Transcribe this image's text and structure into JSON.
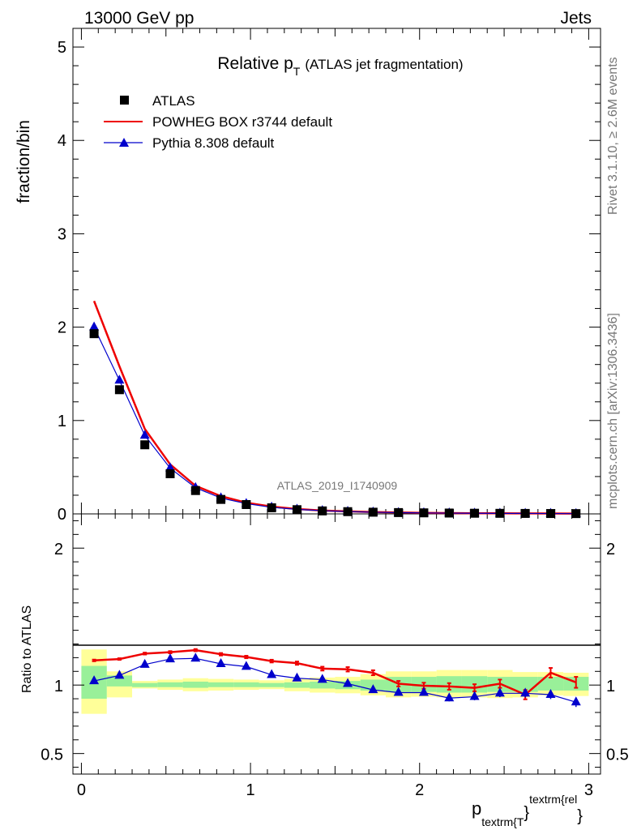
{
  "header": {
    "left": "13000 GeV pp",
    "right": "Jets",
    "title_main": "Relative p",
    "title_sub": "T",
    "title_rest": "(ATLAS jet fragmentation)",
    "watermark": "ATLAS_2019_I1740909",
    "side_rivet": "Rivet 3.1.10, ≥ 2.6M events",
    "side_mcplots": "mcplots.cern.ch [arXiv:1306.3436]"
  },
  "colors": {
    "data": "#000000",
    "powheg": "#ee0000",
    "pythia": "#0000cc",
    "band_inner": "#99f099",
    "band_outer": "#ffff99"
  },
  "chart_data": [
    {
      "type": "scatter",
      "ylabel": "fraction/bin",
      "xlim": [
        -0.05,
        3.07
      ],
      "ylim": [
        0,
        5.2
      ],
      "yticks": [
        0,
        1,
        2,
        3,
        4,
        5
      ],
      "legend_position": "top-left",
      "x": [
        0.075,
        0.225,
        0.375,
        0.525,
        0.675,
        0.825,
        0.975,
        1.125,
        1.275,
        1.425,
        1.575,
        1.725,
        1.875,
        2.025,
        2.175,
        2.325,
        2.475,
        2.625,
        2.775,
        2.925
      ],
      "series": [
        {
          "name": "ATLAS",
          "marker": "square",
          "values": [
            1.93,
            1.33,
            0.74,
            0.43,
            0.25,
            0.155,
            0.1,
            0.065,
            0.045,
            0.032,
            0.024,
            0.018,
            0.014,
            0.011,
            0.009,
            0.007,
            0.006,
            0.005,
            0.004,
            0.003
          ]
        },
        {
          "name": "POWHEG BOX r3744 default",
          "marker": "line",
          "values": [
            2.28,
            1.58,
            0.91,
            0.53,
            0.3,
            0.19,
            0.12,
            0.078,
            0.052,
            0.036,
            0.027,
            0.02,
            0.015,
            0.011,
            0.009,
            0.007,
            0.006,
            0.005,
            0.0045,
            0.003
          ]
        },
        {
          "name": "Pythia 8.308 default",
          "marker": "triangle",
          "values": [
            2.0,
            1.43,
            0.84,
            0.49,
            0.28,
            0.17,
            0.11,
            0.07,
            0.049,
            0.034,
            0.025,
            0.018,
            0.013,
            0.0105,
            0.0083,
            0.0065,
            0.0057,
            0.0047,
            0.0038,
            0.0027
          ]
        }
      ]
    },
    {
      "type": "line",
      "ylabel": "Ratio to ATLAS",
      "xlabel_main": "p",
      "xlabel_sub": "textrm{T",
      "xlabel_sup": "textrm{rel",
      "xlabel_close": "}",
      "xlim": [
        -0.05,
        3.07
      ],
      "ylim": [
        0.35,
        2.25
      ],
      "yticks": [
        0.5,
        1,
        2
      ],
      "xticks": [
        0,
        1,
        2,
        3
      ],
      "edges": [
        0,
        0.15,
        0.3,
        0.45,
        0.6,
        0.75,
        0.9,
        1.05,
        1.2,
        1.35,
        1.5,
        1.65,
        1.8,
        1.95,
        2.1,
        2.25,
        2.4,
        2.55,
        2.7,
        2.85,
        3.0
      ],
      "band_inner": [
        [
          0.9,
          1.14
        ],
        [
          0.99,
          1.07
        ],
        [
          0.985,
          1.015
        ],
        [
          0.985,
          1.02
        ],
        [
          0.98,
          1.025
        ],
        [
          0.985,
          1.02
        ],
        [
          0.985,
          1.02
        ],
        [
          0.985,
          1.015
        ],
        [
          0.98,
          1.02
        ],
        [
          0.975,
          1.025
        ],
        [
          0.97,
          1.03
        ],
        [
          0.96,
          1.04
        ],
        [
          0.95,
          1.06
        ],
        [
          0.95,
          1.06
        ],
        [
          0.945,
          1.065
        ],
        [
          0.945,
          1.065
        ],
        [
          0.95,
          1.06
        ],
        [
          0.95,
          1.06
        ],
        [
          0.96,
          1.06
        ],
        [
          0.96,
          1.06
        ]
      ],
      "band_outer": [
        [
          0.79,
          1.26
        ],
        [
          0.91,
          1.1
        ],
        [
          0.975,
          1.03
        ],
        [
          0.965,
          1.04
        ],
        [
          0.955,
          1.05
        ],
        [
          0.96,
          1.045
        ],
        [
          0.965,
          1.04
        ],
        [
          0.97,
          1.035
        ],
        [
          0.955,
          1.045
        ],
        [
          0.945,
          1.055
        ],
        [
          0.94,
          1.06
        ],
        [
          0.925,
          1.08
        ],
        [
          0.91,
          1.1
        ],
        [
          0.915,
          1.1
        ],
        [
          0.91,
          1.11
        ],
        [
          0.91,
          1.11
        ],
        [
          0.905,
          1.11
        ],
        [
          0.91,
          1.095
        ],
        [
          0.925,
          1.095
        ],
        [
          0.92,
          1.09
        ]
      ],
      "series": [
        {
          "name": "POWHEG BOX r3744 default",
          "values": [
            1.18,
            1.19,
            1.23,
            1.24,
            1.255,
            1.225,
            1.205,
            1.175,
            1.16,
            1.12,
            1.115,
            1.09,
            1.01,
            0.995,
            0.99,
            0.98,
            1.01,
            0.93,
            1.09,
            1.02
          ],
          "errors": [
            0.006,
            0.006,
            0.007,
            0.008,
            0.008,
            0.009,
            0.009,
            0.01,
            0.012,
            0.014,
            0.016,
            0.018,
            0.02,
            0.022,
            0.024,
            0.026,
            0.03,
            0.034,
            0.035,
            0.04
          ]
        },
        {
          "name": "Pythia 8.308 default",
          "values": [
            1.03,
            1.07,
            1.15,
            1.19,
            1.195,
            1.155,
            1.135,
            1.075,
            1.05,
            1.04,
            1.01,
            0.965,
            0.945,
            0.945,
            0.905,
            0.915,
            0.94,
            0.94,
            0.93,
            0.875
          ],
          "errors": [
            0.006,
            0.006,
            0.007,
            0.008,
            0.008,
            0.009,
            0.009,
            0.01,
            0.012,
            0.014,
            0.016,
            0.018,
            0.02,
            0.022,
            0.024,
            0.026,
            0.028,
            0.03,
            0.032,
            0.035
          ]
        }
      ]
    }
  ]
}
